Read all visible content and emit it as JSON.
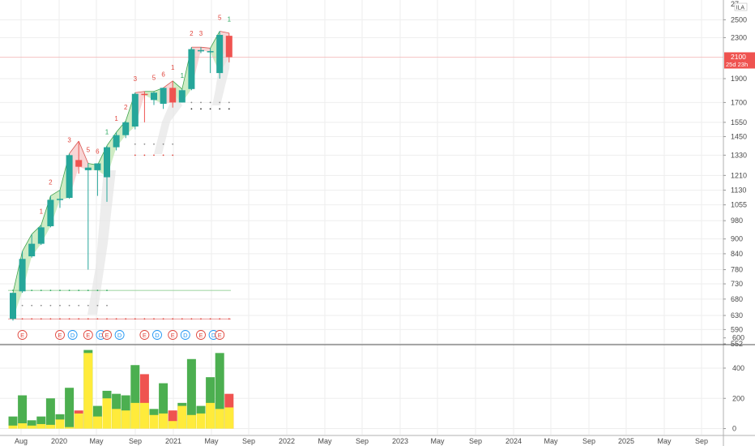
{
  "chart_data": [
    {
      "type": "candlestick",
      "title": "",
      "ylim": [
        552,
        2700
      ],
      "y_scale": "log",
      "price_ticks": [
        552,
        590,
        630,
        680,
        730,
        780,
        840,
        900,
        980,
        1055,
        1130,
        1210,
        1330,
        1450,
        1550,
        1700,
        1900,
        2300,
        2500
      ],
      "top_tick_partial": "27",
      "currency_badge": "ILA",
      "current_price": "2100",
      "current_countdown": "25d 23h",
      "months": [
        "2019-07",
        "2019-08",
        "2019-09",
        "2019-10",
        "2019-11",
        "2019-12",
        "2020-01",
        "2020-02",
        "2020-03",
        "2020-04",
        "2020-05",
        "2020-06",
        "2020-07",
        "2020-08",
        "2020-09",
        "2020-10",
        "2020-11",
        "2020-12",
        "2021-01",
        "2021-02",
        "2021-03",
        "2021-04",
        "2021-05",
        "2021-06"
      ],
      "candles": [
        {
          "o": 620,
          "h": 700,
          "l": 615,
          "c": 700
        },
        {
          "o": 705,
          "h": 850,
          "l": 700,
          "c": 820
        },
        {
          "o": 830,
          "h": 920,
          "l": 825,
          "c": 880
        },
        {
          "o": 880,
          "h": 960,
          "l": 875,
          "c": 950
        },
        {
          "o": 955,
          "h": 1100,
          "l": 950,
          "c": 1080
        },
        {
          "o": 1080,
          "h": 1130,
          "l": 1040,
          "c": 1085
        },
        {
          "o": 1090,
          "h": 1340,
          "l": 1085,
          "c": 1330
        },
        {
          "o": 1300,
          "h": 1420,
          "l": 1220,
          "c": 1260
        },
        {
          "o": 1240,
          "h": 1280,
          "l": 780,
          "c": 1255
        },
        {
          "o": 1240,
          "h": 1270,
          "l": 1100,
          "c": 1280
        },
        {
          "o": 1200,
          "h": 1390,
          "l": 1070,
          "c": 1380
        },
        {
          "o": 1380,
          "h": 1480,
          "l": 1360,
          "c": 1460
        },
        {
          "o": 1460,
          "h": 1560,
          "l": 1440,
          "c": 1550
        },
        {
          "o": 1520,
          "h": 1780,
          "l": 1500,
          "c": 1770
        },
        {
          "o": 1770,
          "h": 1790,
          "l": 1550,
          "c": 1760
        },
        {
          "o": 1720,
          "h": 1790,
          "l": 1680,
          "c": 1780
        },
        {
          "o": 1690,
          "h": 1820,
          "l": 1650,
          "c": 1820
        },
        {
          "o": 1820,
          "h": 1880,
          "l": 1660,
          "c": 1700
        },
        {
          "o": 1700,
          "h": 1810,
          "l": 1700,
          "c": 1800
        },
        {
          "o": 1810,
          "h": 2200,
          "l": 1800,
          "c": 2180
        },
        {
          "o": 2170,
          "h": 2200,
          "l": 2140,
          "c": 2170
        },
        {
          "o": 2150,
          "h": 2190,
          "l": 1950,
          "c": 2160
        },
        {
          "o": 1950,
          "h": 2370,
          "l": 1900,
          "c": 2330
        },
        {
          "o": 2320,
          "h": 2350,
          "l": 2050,
          "c": 2100
        }
      ],
      "counts": [
        {
          "i": 3,
          "t": "1",
          "c": "red"
        },
        {
          "i": 4,
          "t": "2",
          "c": "red"
        },
        {
          "i": 6,
          "t": "3",
          "c": "red"
        },
        {
          "i": 8,
          "t": "5",
          "c": "red"
        },
        {
          "i": 9,
          "t": "6",
          "c": "red"
        },
        {
          "i": 10,
          "t": "1",
          "c": "green"
        },
        {
          "i": 11,
          "t": "1",
          "c": "red"
        },
        {
          "i": 12,
          "t": "2",
          "c": "red"
        },
        {
          "i": 13,
          "t": "3",
          "c": "red"
        },
        {
          "i": 15,
          "t": "5",
          "c": "red"
        },
        {
          "i": 16,
          "t": "6",
          "c": "red"
        },
        {
          "i": 17,
          "t": "1",
          "c": "red"
        },
        {
          "i": 18,
          "t": "1",
          "c": "green"
        },
        {
          "i": 19,
          "t": "2",
          "c": "red"
        },
        {
          "i": 20,
          "t": "3",
          "c": "red"
        },
        {
          "i": 22,
          "t": "5",
          "c": "red"
        },
        {
          "i": 23,
          "t": "1",
          "c": "green"
        }
      ],
      "events": [
        {
          "i": 1,
          "t": "E"
        },
        {
          "i": 5,
          "t": "E"
        },
        {
          "i": 6,
          "t": "D"
        },
        {
          "i": 8,
          "t": "E"
        },
        {
          "i": 9,
          "t": "D"
        },
        {
          "i": 10,
          "t": "E"
        },
        {
          "i": 11,
          "t": "D"
        },
        {
          "i": 14,
          "t": "E"
        },
        {
          "i": 15,
          "t": "D"
        },
        {
          "i": 17,
          "t": "E"
        },
        {
          "i": 18,
          "t": "D"
        },
        {
          "i": 20,
          "t": "E"
        },
        {
          "i": 21,
          "t": "D"
        },
        {
          "i": 22,
          "t": "E"
        }
      ],
      "levels": {
        "support": 620,
        "resistance": 708,
        "trend_high": 2100
      }
    },
    {
      "type": "bar",
      "title": "",
      "ylim": [
        -40,
        550
      ],
      "volume_ticks": [
        "0",
        "200",
        "400",
        "600"
      ],
      "volume": [
        80,
        220,
        55,
        80,
        200,
        95,
        270,
        120,
        520,
        150,
        250,
        230,
        220,
        420,
        360,
        130,
        300,
        120,
        170,
        460,
        150,
        340,
        500,
        230
      ],
      "yellow": [
        20,
        35,
        20,
        30,
        25,
        60,
        10,
        100,
        500,
        80,
        200,
        130,
        120,
        170,
        170,
        90,
        100,
        50,
        150,
        90,
        100,
        170,
        130,
        140
      ],
      "x_labels": [
        "Aug",
        "2020",
        "May",
        "Sep",
        "2021",
        "May",
        "Sep",
        "2022",
        "May",
        "Sep",
        "2023",
        "May",
        "Sep",
        "2024",
        "May",
        "Sep",
        "2025",
        "May",
        "Sep"
      ]
    }
  ],
  "colors": {
    "up": "#26a69a",
    "down": "#ef5350",
    "vol_up": "#4caf50",
    "vol_down": "#ef5350",
    "vol_yellow": "#ffeb3b",
    "cloud_green": "#bfe6b0",
    "cloud_red": "#f6c7c7",
    "grid": "#eeeeee",
    "text": "#4a4a4a"
  }
}
